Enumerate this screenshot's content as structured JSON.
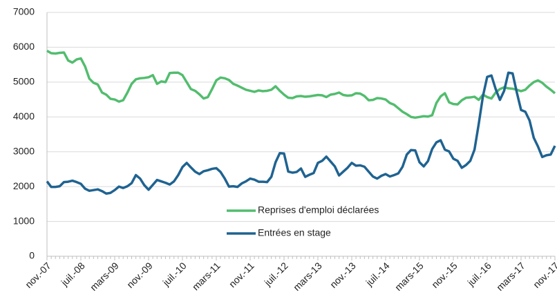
{
  "chart_data": {
    "type": "line",
    "categories": [
      "nov.-07",
      null,
      null,
      null,
      null,
      null,
      null,
      null,
      "juil.-08",
      null,
      null,
      null,
      null,
      null,
      null,
      null,
      "mars-09",
      null,
      null,
      null,
      null,
      null,
      null,
      null,
      "nov.-09",
      null,
      null,
      null,
      null,
      null,
      null,
      null,
      "juil.-10",
      null,
      null,
      null,
      null,
      null,
      null,
      null,
      "mars-11",
      null,
      null,
      null,
      null,
      null,
      null,
      null,
      "nov.-11",
      null,
      null,
      null,
      null,
      null,
      null,
      null,
      "juil.-12",
      null,
      null,
      null,
      null,
      null,
      null,
      null,
      "mars-13",
      null,
      null,
      null,
      null,
      null,
      null,
      null,
      "nov.-13",
      null,
      null,
      null,
      null,
      null,
      null,
      null,
      "juil.-14",
      null,
      null,
      null,
      null,
      null,
      null,
      null,
      "mars-15",
      null,
      null,
      null,
      null,
      null,
      null,
      null,
      "nov.-15",
      null,
      null,
      null,
      null,
      null,
      null,
      null,
      "juil.-16",
      null,
      null,
      null,
      null,
      null,
      null,
      null,
      "mars-17",
      null,
      null,
      null,
      null,
      null,
      null,
      null,
      "nov.-17"
    ],
    "series": [
      {
        "name": "Reprises d'emploi déclarées",
        "color": "#52bd6e",
        "values": [
          5900,
          5830,
          5820,
          5840,
          5850,
          5620,
          5560,
          5650,
          5680,
          5450,
          5100,
          4980,
          4930,
          4700,
          4640,
          4520,
          4500,
          4440,
          4480,
          4700,
          4950,
          5080,
          5110,
          5120,
          5140,
          5200,
          4950,
          5020,
          5000,
          5260,
          5270,
          5270,
          5200,
          5000,
          4800,
          4750,
          4650,
          4530,
          4570,
          4800,
          5050,
          5130,
          5110,
          5060,
          4950,
          4900,
          4840,
          4780,
          4750,
          4720,
          4760,
          4740,
          4750,
          4780,
          4880,
          4750,
          4640,
          4550,
          4540,
          4590,
          4600,
          4580,
          4590,
          4610,
          4630,
          4620,
          4570,
          4640,
          4660,
          4700,
          4630,
          4610,
          4620,
          4680,
          4670,
          4600,
          4480,
          4490,
          4540,
          4530,
          4500,
          4400,
          4350,
          4250,
          4150,
          4080,
          4000,
          3980,
          4000,
          4020,
          4010,
          4050,
          4400,
          4590,
          4680,
          4420,
          4370,
          4360,
          4480,
          4550,
          4560,
          4580,
          4490,
          4640,
          4570,
          4530,
          4700,
          4800,
          4850,
          4820,
          4810,
          4780,
          4740,
          4780,
          4900,
          5000,
          5050,
          4980,
          4870,
          4780,
          4680
        ]
      },
      {
        "name": "Entrées en stage",
        "color": "#1f6391",
        "values": [
          2150,
          1990,
          1990,
          2010,
          2130,
          2140,
          2170,
          2130,
          2080,
          1940,
          1880,
          1900,
          1920,
          1870,
          1800,
          1820,
          1900,
          2000,
          1960,
          2010,
          2100,
          2330,
          2230,
          2040,
          1910,
          2050,
          2190,
          2150,
          2110,
          2060,
          2150,
          2330,
          2560,
          2680,
          2550,
          2430,
          2360,
          2440,
          2470,
          2510,
          2530,
          2420,
          2230,
          2000,
          2010,
          1990,
          2090,
          2150,
          2230,
          2200,
          2140,
          2140,
          2130,
          2280,
          2700,
          2960,
          2950,
          2430,
          2400,
          2420,
          2520,
          2280,
          2340,
          2390,
          2680,
          2740,
          2860,
          2720,
          2580,
          2320,
          2430,
          2540,
          2680,
          2600,
          2610,
          2570,
          2430,
          2290,
          2230,
          2310,
          2360,
          2290,
          2330,
          2380,
          2570,
          2920,
          3050,
          3040,
          2700,
          2580,
          2730,
          3080,
          3270,
          3330,
          3060,
          3010,
          2800,
          2740,
          2540,
          2620,
          2740,
          3060,
          3800,
          4600,
          5150,
          5190,
          4800,
          4490,
          4750,
          5270,
          5250,
          4700,
          4200,
          4150,
          3900,
          3400,
          3150,
          2850,
          2900,
          2920,
          3170
        ]
      }
    ],
    "ylim": [
      0,
      7000
    ],
    "yticks": [
      0,
      1000,
      2000,
      3000,
      4000,
      5000,
      6000,
      7000
    ],
    "grid": true
  }
}
